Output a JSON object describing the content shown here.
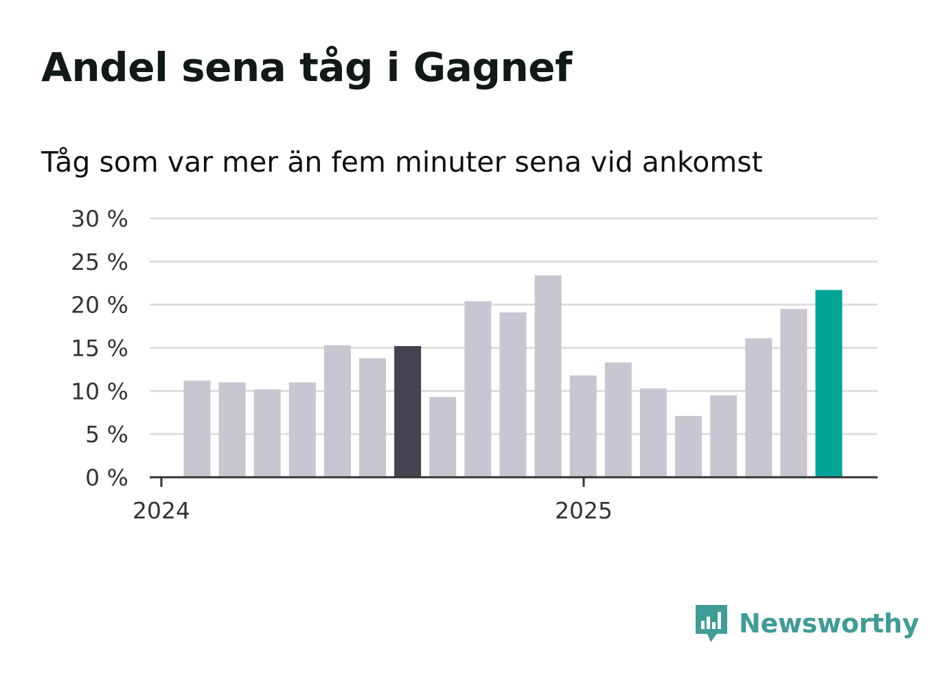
{
  "title": "Andel sena tåg i Gagnef",
  "subtitle": "Tåg som var mer än fem minuter sena vid ankomst",
  "brand": {
    "name": "Newsworthy",
    "color": "#3f9c97",
    "icon": "newsworthy-logo-icon"
  },
  "colors": {
    "default_bar": "#c8c7d1",
    "highlight_bar": "#45434f",
    "latest_bar": "#00a497",
    "grid": "#dddddd",
    "axis": "#333333"
  },
  "chart_data": {
    "type": "bar",
    "title": "Andel sena tåg i Gagnef",
    "subtitle": "Tåg som var mer än fem minuter sena vid ankomst",
    "xlabel": "",
    "ylabel": "",
    "ylim": [
      0,
      30
    ],
    "yticks": [
      0,
      5,
      10,
      15,
      20,
      25,
      30
    ],
    "ytick_labels": [
      "0 %",
      "5 %",
      "10 %",
      "15 %",
      "20 %",
      "25 %",
      "30 %"
    ],
    "xtick_labels": [
      "2024",
      "2025"
    ],
    "grid": true,
    "values": [
      11.2,
      11.0,
      10.2,
      11.0,
      15.3,
      13.8,
      15.2,
      9.3,
      20.4,
      19.1,
      23.4,
      11.8,
      13.3,
      10.3,
      7.1,
      9.5,
      16.1,
      19.5,
      21.7
    ],
    "bar_style": [
      "default",
      "default",
      "default",
      "default",
      "default",
      "default",
      "highlight",
      "default",
      "default",
      "default",
      "default",
      "default",
      "default",
      "default",
      "default",
      "default",
      "default",
      "default",
      "latest"
    ]
  }
}
